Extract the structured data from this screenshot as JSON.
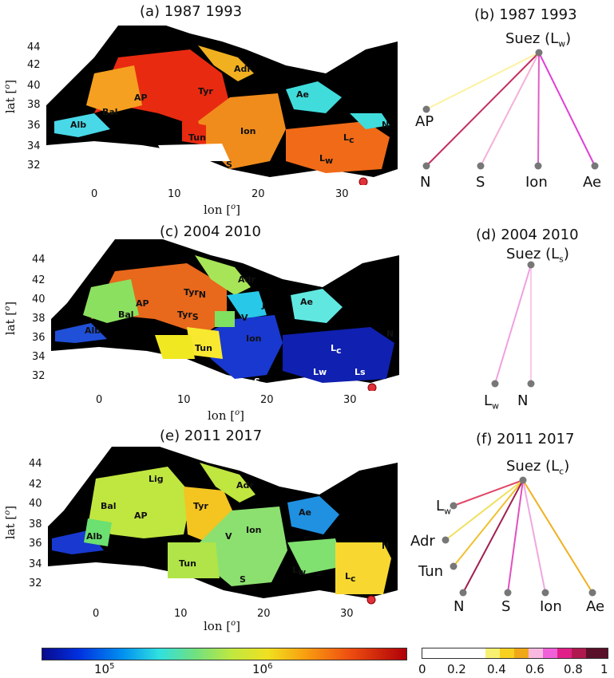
{
  "panels": {
    "a": {
      "title": "(a) 1987 1993"
    },
    "b": {
      "title": "(b) 1987 1993"
    },
    "c": {
      "title": "(c) 2004 2010"
    },
    "d": {
      "title": "(d) 2004 2010"
    },
    "e": {
      "title": "(e) 2011 2017"
    },
    "f": {
      "title": "(f) 2011 2017"
    }
  },
  "axes": {
    "xlabel": "lon [",
    "ylabel": "lat [",
    "unit_sup": "o",
    "close": "]",
    "yticks": [
      "44",
      "42",
      "40",
      "38",
      "36",
      "34",
      "32"
    ],
    "xticks": [
      "0",
      "10",
      "20",
      "30"
    ]
  },
  "map_a_regions": {
    "Adr": "Adr",
    "AP": "AP",
    "Tyr": "Tyr",
    "Bal": "Bal",
    "Alb": "Alb",
    "Ae": "Ae",
    "Ion": "Ion",
    "Tun": "Tun",
    "S": "S",
    "N": "N",
    "Lc": "L",
    "Lw": "L",
    "c": "c",
    "w": "w"
  },
  "map_c_regions": {
    "Adr": "Adr",
    "AP": "AP",
    "TyrN": "Tyr",
    "N": "N",
    "Bal": "Bal",
    "TyrS": "Tyr",
    "S": "S",
    "Alb": "Alb",
    "J": "J",
    "V": "V",
    "Ion": "Ion",
    "Ae": "Ae",
    "Tun": "Tun",
    "Lc": "L",
    "c": "c",
    "Lw": "Lw",
    "Ls": "Ls",
    "N2": "N",
    "S2": "S"
  },
  "map_e_regions": {
    "Lig": "Lig",
    "Adr": "Adr",
    "Bal": "Bal",
    "AP": "AP",
    "Tyr": "Tyr",
    "Ae": "Ae",
    "Alb": "Alb",
    "V": "V",
    "Ion": "Ion",
    "Tun": "Tun",
    "S": "S",
    "Lw": "L",
    "w": "w",
    "N": "N",
    "Lc": "L",
    "c": "c"
  },
  "network_b": {
    "root": "Suez (L",
    "root_sub": "w",
    "root_close": ")",
    "nodes": [
      "AP",
      "N",
      "S",
      "Ion",
      "Ae"
    ]
  },
  "network_d": {
    "root": "Suez (L",
    "root_sub": "s",
    "root_close": ")",
    "nodes": [
      "L",
      "N"
    ],
    "node_sub": "w"
  },
  "network_f": {
    "root": "Suez (L",
    "root_sub": "c",
    "root_close": ")",
    "nodes": [
      "L",
      "Adr",
      "Tun",
      "N",
      "S",
      "Ion",
      "Ae"
    ],
    "node_sub": "w"
  },
  "colorbar_left": {
    "ticks": [
      "10",
      "10"
    ],
    "sup": [
      "5",
      "6"
    ]
  },
  "colorbar_right": {
    "ticks": [
      "0",
      "0.2",
      "0.4",
      "0.6",
      "0.8",
      "1"
    ]
  },
  "colors": {
    "sea_black": "#000000",
    "land_white": "#ffffff",
    "source_marker": "#e0303a",
    "node_gray": "#777777"
  }
}
